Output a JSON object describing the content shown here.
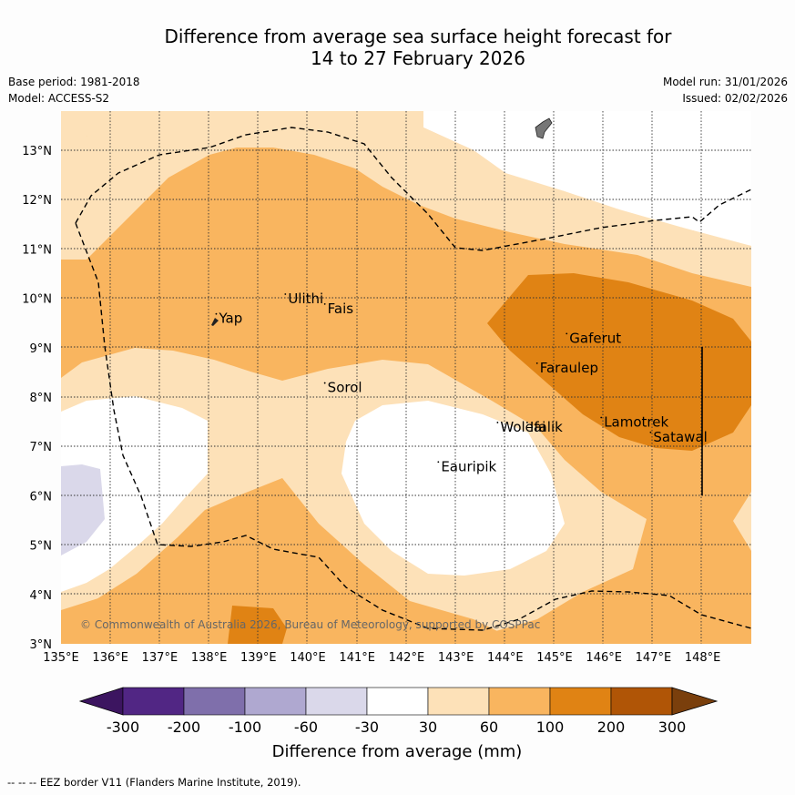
{
  "title_line1": "Difference from average sea surface height forecast for",
  "title_line2": "14 to 27 February 2026",
  "base_period": "Base period: 1981-2018",
  "model": "Model: ACCESS-S2",
  "model_run": "Model run: 31/01/2026",
  "issued": "Issued: 02/02/2026",
  "copyright": "© Commonwealth of Australia 2026, Bureau of Meteorology, supported by COSPPac",
  "lon_labels": [
    "135°E",
    "136°E",
    "137°E",
    "138°E",
    "139°E",
    "140°E",
    "141°E",
    "142°E",
    "143°E",
    "144°E",
    "145°E",
    "146°E",
    "147°E",
    "148°E"
  ],
  "lat_labels": [
    "3°N",
    "4°N",
    "5°N",
    "6°N",
    "7°N",
    "8°N",
    "9°N",
    "10°N",
    "11°N",
    "12°N",
    "13°N"
  ],
  "places": [
    {
      "name": "Yap",
      "lon": 138.2,
      "lat": 9.5
    },
    {
      "name": "Ulithi",
      "lon": 139.6,
      "lat": 9.9
    },
    {
      "name": "Fais",
      "lon": 140.4,
      "lat": 9.7
    },
    {
      "name": "Sorol",
      "lon": 140.4,
      "lat": 8.1
    },
    {
      "name": "Gaferut",
      "lon": 145.3,
      "lat": 9.1
    },
    {
      "name": "Faraulep",
      "lon": 144.7,
      "lat": 8.5
    },
    {
      "name": "Woleai",
      "lon": 143.9,
      "lat": 7.3
    },
    {
      "name": "Ifalik",
      "lon": 144.5,
      "lat": 7.3
    },
    {
      "name": "Lamotrek",
      "lon": 146.0,
      "lat": 7.4
    },
    {
      "name": "Satawal",
      "lon": 147.0,
      "lat": 7.1
    },
    {
      "name": "Eauripik",
      "lon": 142.7,
      "lat": 6.5
    }
  ],
  "colorbar": {
    "ticks": [
      "-300",
      "-200",
      "-100",
      "-60",
      "-30",
      "30",
      "60",
      "100",
      "200",
      "300"
    ],
    "colors": [
      "#3c1560",
      "#512684",
      "#7f6fab",
      "#afa8d0",
      "#dad8ea",
      "#ffffff",
      "#fde1b8",
      "#f9b55f",
      "#e08314",
      "#b05506",
      "#7a3f0c"
    ],
    "label": "Difference from average (mm)"
  },
  "legend": {
    "symbol": "--  --  --",
    "text": "EEZ border V11 (Flanders Marine Institute, 2019)."
  }
}
